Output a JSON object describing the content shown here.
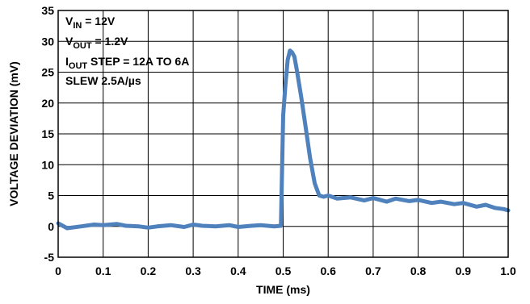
{
  "chart_data": {
    "type": "line",
    "title": "",
    "xlabel": "TIME (ms)",
    "ylabel": "VOLTAGE DEVIATION (mV)",
    "xlim": [
      0,
      1.0
    ],
    "ylim": [
      -5,
      35
    ],
    "x_ticks": [
      "0",
      "0.1",
      "0.2",
      "0.3",
      "0.4",
      "0.5",
      "0.6",
      "0.7",
      "0.8",
      "0.9",
      "1.0"
    ],
    "y_ticks": [
      "35",
      "30",
      "25",
      "20",
      "15",
      "10",
      "5",
      "0",
      "-5"
    ],
    "grid": true,
    "annotations": [
      {
        "parts": [
          {
            "t": "V"
          },
          {
            "t": "IN",
            "sub": true
          },
          {
            "t": " = 12V"
          }
        ]
      },
      {
        "parts": [
          {
            "t": "V"
          },
          {
            "t": "OUT",
            "sub": true
          },
          {
            "t": " = 1.2V"
          }
        ]
      },
      {
        "parts": [
          {
            "t": "I"
          },
          {
            "t": "OUT",
            "sub": true
          },
          {
            "t": " STEP = 12A TO 6A"
          }
        ]
      },
      {
        "parts": [
          {
            "t": "SLEW 2.5A/µs"
          }
        ]
      }
    ],
    "series": [
      {
        "color": "#4f81bd",
        "x": [
          0.0,
          0.02,
          0.05,
          0.08,
          0.1,
          0.13,
          0.15,
          0.18,
          0.2,
          0.22,
          0.25,
          0.28,
          0.3,
          0.32,
          0.35,
          0.38,
          0.4,
          0.43,
          0.45,
          0.48,
          0.495,
          0.5,
          0.505,
          0.51,
          0.515,
          0.52,
          0.525,
          0.53,
          0.54,
          0.55,
          0.56,
          0.57,
          0.58,
          0.59,
          0.6,
          0.62,
          0.65,
          0.68,
          0.7,
          0.73,
          0.75,
          0.78,
          0.8,
          0.83,
          0.85,
          0.88,
          0.9,
          0.93,
          0.95,
          0.97,
          0.99,
          1.0
        ],
        "y": [
          0.5,
          -0.3,
          0.0,
          0.3,
          0.2,
          0.4,
          0.1,
          0.0,
          -0.2,
          0.0,
          0.2,
          -0.1,
          0.3,
          0.1,
          0.0,
          0.2,
          -0.1,
          0.1,
          0.2,
          0.0,
          0.1,
          18.0,
          23.0,
          27.0,
          28.5,
          28.2,
          27.5,
          25.5,
          21.0,
          16.0,
          11.0,
          7.0,
          5.0,
          4.8,
          5.0,
          4.5,
          4.7,
          4.2,
          4.6,
          4.0,
          4.5,
          4.1,
          4.3,
          3.8,
          4.0,
          3.6,
          3.8,
          3.2,
          3.5,
          3.0,
          2.8,
          2.6
        ]
      }
    ]
  }
}
